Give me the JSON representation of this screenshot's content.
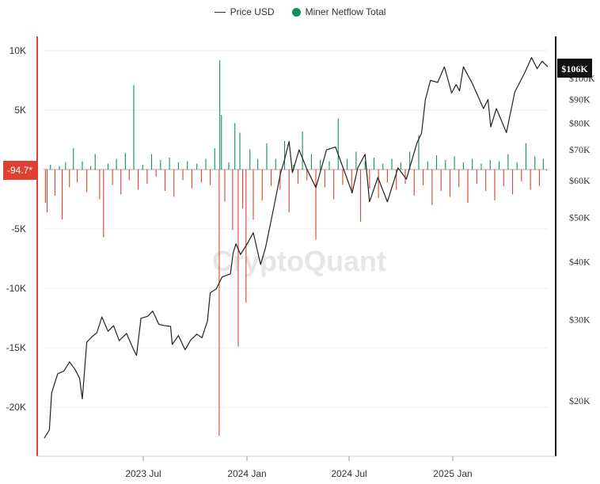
{
  "legend": {
    "price_label": "Price USD",
    "netflow_label": "Miner Netflow Total",
    "price_color": "#222222",
    "netflow_color": "#13905a"
  },
  "watermark": "CryptoQuant",
  "current_netflow_label": "-94.7*",
  "current_price_label": "$106K",
  "chart_data": {
    "type": "bar+line",
    "x_range": [
      "2023-01-01",
      "2025-06-01"
    ],
    "x_ticks": [
      "2023 Jul",
      "2024 Jan",
      "2024 Jul",
      "2025 Jan"
    ],
    "left_axis": {
      "title": "",
      "ylim": [
        -24000,
        11000
      ],
      "ticks": [
        10000,
        5000,
        -5000,
        -10000,
        -15000,
        -20000
      ],
      "tick_labels": [
        "10K",
        "5K",
        "-5K",
        "-10K",
        "-15K",
        "-20K"
      ]
    },
    "right_axis": {
      "scale": "log",
      "title": "",
      "ylim": [
        15000,
        125000
      ],
      "ticks": [
        20000,
        30000,
        40000,
        50000,
        60000,
        70000,
        80000,
        90000,
        100000
      ],
      "tick_labels": [
        "$20K",
        "$30K",
        "$40K",
        "$50K",
        "$60K",
        "$70K",
        "$80K",
        "$90K",
        "$100K"
      ]
    },
    "series": [
      {
        "name": "Price USD",
        "kind": "line",
        "axis": "right",
        "color": "#222222",
        "points": [
          [
            "2023-01-01",
            16600
          ],
          [
            "2023-01-10",
            17300
          ],
          [
            "2023-01-14",
            20800
          ],
          [
            "2023-01-25",
            22900
          ],
          [
            "2023-02-05",
            23200
          ],
          [
            "2023-02-15",
            24300
          ],
          [
            "2023-02-25",
            23400
          ],
          [
            "2023-03-05",
            22400
          ],
          [
            "2023-03-10",
            20200
          ],
          [
            "2023-03-18",
            26800
          ],
          [
            "2023-03-28",
            27600
          ],
          [
            "2023-04-05",
            28100
          ],
          [
            "2023-04-14",
            30400
          ],
          [
            "2023-04-25",
            28300
          ],
          [
            "2023-05-05",
            29100
          ],
          [
            "2023-05-15",
            27000
          ],
          [
            "2023-05-28",
            28000
          ],
          [
            "2023-06-10",
            25800
          ],
          [
            "2023-06-15",
            25100
          ],
          [
            "2023-06-23",
            30200
          ],
          [
            "2023-07-05",
            30500
          ],
          [
            "2023-07-14",
            31300
          ],
          [
            "2023-07-25",
            29300
          ],
          [
            "2023-08-05",
            29100
          ],
          [
            "2023-08-15",
            29000
          ],
          [
            "2023-08-18",
            26500
          ],
          [
            "2023-08-29",
            27700
          ],
          [
            "2023-09-10",
            25800
          ],
          [
            "2023-09-20",
            27100
          ],
          [
            "2023-10-01",
            27900
          ],
          [
            "2023-10-10",
            27400
          ],
          [
            "2023-10-20",
            29800
          ],
          [
            "2023-10-25",
            34300
          ],
          [
            "2023-11-05",
            35000
          ],
          [
            "2023-11-15",
            37100
          ],
          [
            "2023-11-30",
            37700
          ],
          [
            "2023-12-05",
            41900
          ],
          [
            "2023-12-10",
            43800
          ],
          [
            "2023-12-18",
            41500
          ],
          [
            "2024-01-01",
            44200
          ],
          [
            "2024-01-10",
            46300
          ],
          [
            "2024-01-23",
            39500
          ],
          [
            "2024-02-01",
            43000
          ],
          [
            "2024-02-15",
            52000
          ],
          [
            "2024-02-28",
            62500
          ],
          [
            "2024-03-05",
            66000
          ],
          [
            "2024-03-14",
            73000
          ],
          [
            "2024-03-20",
            62500
          ],
          [
            "2024-04-01",
            70000
          ],
          [
            "2024-04-15",
            63500
          ],
          [
            "2024-05-01",
            58000
          ],
          [
            "2024-05-20",
            70000
          ],
          [
            "2024-06-05",
            71000
          ],
          [
            "2024-06-25",
            61000
          ],
          [
            "2024-07-05",
            56500
          ],
          [
            "2024-07-15",
            64000
          ],
          [
            "2024-07-28",
            68500
          ],
          [
            "2024-08-05",
            54000
          ],
          [
            "2024-08-20",
            61000
          ],
          [
            "2024-09-06",
            54000
          ],
          [
            "2024-09-25",
            64000
          ],
          [
            "2024-10-10",
            60500
          ],
          [
            "2024-10-29",
            72500
          ],
          [
            "2024-11-06",
            76000
          ],
          [
            "2024-11-13",
            90000
          ],
          [
            "2024-11-22",
            99000
          ],
          [
            "2024-12-05",
            98000
          ],
          [
            "2024-12-17",
            106000
          ],
          [
            "2024-12-30",
            93000
          ],
          [
            "2025-01-07",
            97000
          ],
          [
            "2025-01-13",
            94000
          ],
          [
            "2025-01-20",
            106000
          ],
          [
            "2025-02-05",
            97500
          ],
          [
            "2025-02-25",
            86000
          ],
          [
            "2025-03-05",
            90000
          ],
          [
            "2025-03-10",
            78500
          ],
          [
            "2025-03-20",
            86000
          ],
          [
            "2025-04-07",
            76300
          ],
          [
            "2025-04-22",
            93500
          ],
          [
            "2025-05-10",
            103000
          ],
          [
            "2025-05-22",
            111000
          ],
          [
            "2025-06-01",
            105000
          ],
          [
            "2025-06-10",
            109000
          ],
          [
            "2025-06-20",
            106000
          ]
        ]
      },
      {
        "name": "Miner Netflow Total",
        "kind": "bar",
        "axis": "left",
        "positive_color": "#13905a",
        "negative_color": "#e0402f",
        "points": [
          [
            "2023-01-03",
            -2800
          ],
          [
            "2023-01-06",
            -3600
          ],
          [
            "2023-01-12",
            400
          ],
          [
            "2023-01-20",
            -2200
          ],
          [
            "2023-01-28",
            300
          ],
          [
            "2023-02-02",
            -4200
          ],
          [
            "2023-02-08",
            600
          ],
          [
            "2023-02-15",
            -1500
          ],
          [
            "2023-02-22",
            1800
          ],
          [
            "2023-03-01",
            -1100
          ],
          [
            "2023-03-10",
            700
          ],
          [
            "2023-03-18",
            -1900
          ],
          [
            "2023-03-25",
            300
          ],
          [
            "2023-04-02",
            1300
          ],
          [
            "2023-04-10",
            -2500
          ],
          [
            "2023-04-17",
            -5700
          ],
          [
            "2023-04-25",
            500
          ],
          [
            "2023-05-03",
            -1300
          ],
          [
            "2023-05-10",
            900
          ],
          [
            "2023-05-18",
            -2100
          ],
          [
            "2023-05-26",
            1400
          ],
          [
            "2023-06-02",
            -900
          ],
          [
            "2023-06-10",
            7100
          ],
          [
            "2023-06-18",
            -1700
          ],
          [
            "2023-06-26",
            400
          ],
          [
            "2023-07-04",
            -1200
          ],
          [
            "2023-07-12",
            1300
          ],
          [
            "2023-07-20",
            -600
          ],
          [
            "2023-07-28",
            800
          ],
          [
            "2023-08-05",
            -1800
          ],
          [
            "2023-08-13",
            1000
          ],
          [
            "2023-08-21",
            -2300
          ],
          [
            "2023-08-29",
            600
          ],
          [
            "2023-09-06",
            -900
          ],
          [
            "2023-09-14",
            700
          ],
          [
            "2023-09-22",
            -1600
          ],
          [
            "2023-10-01",
            500
          ],
          [
            "2023-10-09",
            -1100
          ],
          [
            "2023-10-17",
            900
          ],
          [
            "2023-10-25",
            -1300
          ],
          [
            "2023-11-02",
            1800
          ],
          [
            "2023-11-10",
            -22400
          ],
          [
            "2023-11-11",
            9200
          ],
          [
            "2023-11-14",
            4600
          ],
          [
            "2023-11-20",
            -2700
          ],
          [
            "2023-11-27",
            600
          ],
          [
            "2023-12-04",
            -5100
          ],
          [
            "2023-12-08",
            3900
          ],
          [
            "2023-12-14",
            -14900
          ],
          [
            "2023-12-17",
            3100
          ],
          [
            "2023-12-22",
            -3300
          ],
          [
            "2023-12-28",
            -11200
          ],
          [
            "2024-01-04",
            1700
          ],
          [
            "2024-01-10",
            -4200
          ],
          [
            "2024-01-18",
            900
          ],
          [
            "2024-01-26",
            -2600
          ],
          [
            "2024-02-03",
            2200
          ],
          [
            "2024-02-11",
            -1400
          ],
          [
            "2024-02-19",
            900
          ],
          [
            "2024-02-27",
            -1700
          ],
          [
            "2024-03-06",
            2400
          ],
          [
            "2024-03-14",
            -3600
          ],
          [
            "2024-03-22",
            400
          ],
          [
            "2024-03-30",
            -1200
          ],
          [
            "2024-04-07",
            3200
          ],
          [
            "2024-04-15",
            -900
          ],
          [
            "2024-04-23",
            1300
          ],
          [
            "2024-05-01",
            -5900
          ],
          [
            "2024-05-09",
            800
          ],
          [
            "2024-05-17",
            -1500
          ],
          [
            "2024-05-25",
            700
          ],
          [
            "2024-06-02",
            -2500
          ],
          [
            "2024-06-10",
            4300
          ],
          [
            "2024-06-18",
            -1300
          ],
          [
            "2024-06-26",
            900
          ],
          [
            "2024-07-04",
            -2000
          ],
          [
            "2024-07-12",
            1500
          ],
          [
            "2024-07-20",
            -4400
          ],
          [
            "2024-07-28",
            700
          ],
          [
            "2024-08-05",
            -1600
          ],
          [
            "2024-08-13",
            1000
          ],
          [
            "2024-08-21",
            -2400
          ],
          [
            "2024-08-29",
            500
          ],
          [
            "2024-09-06",
            -1100
          ],
          [
            "2024-09-14",
            900
          ],
          [
            "2024-09-22",
            -1700
          ],
          [
            "2024-09-30",
            600
          ],
          [
            "2024-10-08",
            -1200
          ],
          [
            "2024-10-16",
            1500
          ],
          [
            "2024-10-24",
            -2200
          ],
          [
            "2024-11-01",
            2900
          ],
          [
            "2024-11-09",
            -1300
          ],
          [
            "2024-11-17",
            700
          ],
          [
            "2024-11-25",
            -3000
          ],
          [
            "2024-12-03",
            1200
          ],
          [
            "2024-12-11",
            -1800
          ],
          [
            "2024-12-19",
            800
          ],
          [
            "2024-12-27",
            -2300
          ],
          [
            "2025-01-04",
            1100
          ],
          [
            "2025-01-12",
            -1500
          ],
          [
            "2025-01-20",
            600
          ],
          [
            "2025-01-28",
            -2800
          ],
          [
            "2025-02-05",
            900
          ],
          [
            "2025-02-13",
            -1200
          ],
          [
            "2025-02-21",
            500
          ],
          [
            "2025-03-01",
            -1800
          ],
          [
            "2025-03-09",
            800
          ],
          [
            "2025-03-17",
            -2600
          ],
          [
            "2025-03-25",
            700
          ],
          [
            "2025-04-02",
            -1400
          ],
          [
            "2025-04-10",
            1300
          ],
          [
            "2025-04-18",
            -2100
          ],
          [
            "2025-04-26",
            600
          ],
          [
            "2025-05-04",
            -1000
          ],
          [
            "2025-05-12",
            2200
          ],
          [
            "2025-05-20",
            -1700
          ],
          [
            "2025-05-28",
            1100
          ],
          [
            "2025-06-05",
            -1400
          ],
          [
            "2025-06-12",
            900
          ],
          [
            "2025-06-18",
            -95
          ]
        ]
      }
    ],
    "grid": true,
    "legend_position": "top-center"
  }
}
